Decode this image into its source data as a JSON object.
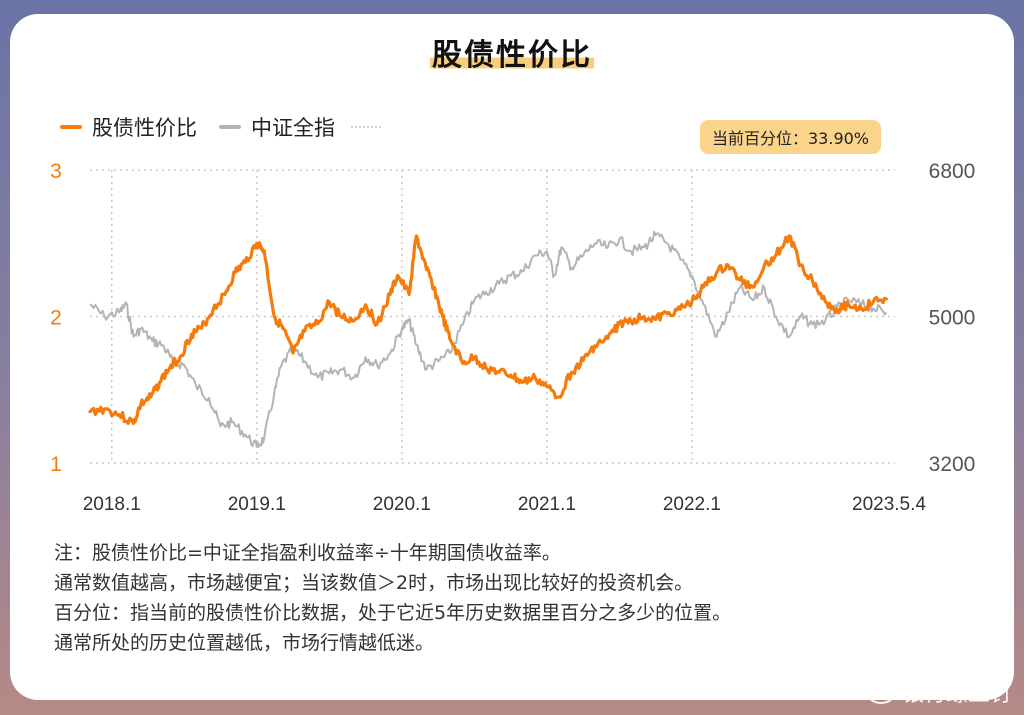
{
  "title": "股债性价比",
  "legend": {
    "series1": "股债性价比",
    "series2": "中证全指"
  },
  "badge": "当前百分位：33.90%",
  "colors": {
    "series1": "#f57c0c",
    "series2": "#b4b4b4",
    "badge_bg": "#f9d48a",
    "title_highlight": "#f7cf7c"
  },
  "notes": [
    "注：股债性价比=中证全指盈利收益率÷十年期国债收益率。",
    "通常数值越高，市场越便宜；当该数值＞2时，市场出现比较好的投资机会。",
    "百分位：指当前的股债性价比数据，处于它近5年历史数据里百分之多少的位置。",
    "通常所处的历史位置越低，市场行情越低迷。"
  ],
  "watermark": "银行螺丝钉",
  "chart_data": {
    "type": "line",
    "x_axis": {
      "range": [
        2018.0,
        2023.35
      ],
      "tick_labels": [
        "2018.1",
        "2019.1",
        "2020.1",
        "2021.1",
        "2022.1",
        "2023.5.4"
      ],
      "tick_values": [
        2018.0,
        2019.0,
        2020.0,
        2021.0,
        2022.0,
        2023.34
      ]
    },
    "y_left": {
      "range": [
        1,
        3
      ],
      "ticks": [
        "1",
        "2",
        "3"
      ]
    },
    "y_right": {
      "range": [
        3200,
        6800
      ],
      "ticks": [
        "3200",
        "5000",
        "6800"
      ]
    },
    "grid": true,
    "legend_position": "top-left",
    "series": [
      {
        "name": "股债性价比",
        "axis": "left",
        "x": [
          2017.85,
          2017.95,
          2018.05,
          2018.15,
          2018.2,
          2018.27,
          2018.33,
          2018.4,
          2018.47,
          2018.55,
          2018.62,
          2018.7,
          2018.78,
          2018.85,
          2018.92,
          2019.0,
          2019.05,
          2019.12,
          2019.18,
          2019.25,
          2019.33,
          2019.42,
          2019.5,
          2019.58,
          2019.67,
          2019.75,
          2019.83,
          2019.92,
          2019.97,
          2020.05,
          2020.1,
          2020.17,
          2020.22,
          2020.28,
          2020.33,
          2020.42,
          2020.5,
          2020.58,
          2020.67,
          2020.75,
          2020.83,
          2020.92,
          2021.0,
          2021.08,
          2021.17,
          2021.25,
          2021.33,
          2021.42,
          2021.5,
          2021.58,
          2021.67,
          2021.75,
          2021.83,
          2021.92,
          2022.0,
          2022.08,
          2022.17,
          2022.25,
          2022.33,
          2022.42,
          2022.5,
          2022.58,
          2022.67,
          2022.75,
          2022.83,
          2022.92,
          2023.0,
          2023.08,
          2023.17,
          2023.25,
          2023.34
        ],
        "y": [
          1.35,
          1.37,
          1.33,
          1.27,
          1.4,
          1.45,
          1.55,
          1.65,
          1.72,
          1.88,
          1.92,
          2.05,
          2.15,
          2.3,
          2.37,
          2.5,
          2.45,
          2.0,
          1.92,
          1.75,
          1.9,
          1.95,
          2.1,
          2.0,
          1.97,
          2.08,
          1.95,
          2.15,
          2.28,
          2.15,
          2.55,
          2.32,
          2.2,
          2.0,
          1.85,
          1.68,
          1.72,
          1.65,
          1.62,
          1.6,
          1.55,
          1.58,
          1.52,
          1.45,
          1.62,
          1.7,
          1.8,
          1.85,
          1.95,
          1.97,
          2.0,
          1.98,
          2.02,
          2.05,
          2.1,
          2.2,
          2.3,
          2.35,
          2.25,
          2.2,
          2.35,
          2.42,
          2.55,
          2.35,
          2.25,
          2.1,
          2.05,
          2.08,
          2.05,
          2.1,
          2.12
        ]
      },
      {
        "name": "中证全指",
        "axis": "right",
        "x": [
          2017.85,
          2017.95,
          2018.05,
          2018.1,
          2018.15,
          2018.2,
          2018.28,
          2018.35,
          2018.42,
          2018.5,
          2018.58,
          2018.67,
          2018.75,
          2018.83,
          2018.92,
          2019.0,
          2019.05,
          2019.12,
          2019.17,
          2019.25,
          2019.33,
          2019.42,
          2019.5,
          2019.58,
          2019.67,
          2019.75,
          2019.83,
          2019.92,
          2020.0,
          2020.05,
          2020.1,
          2020.17,
          2020.25,
          2020.33,
          2020.42,
          2020.5,
          2020.58,
          2020.67,
          2020.75,
          2020.83,
          2020.92,
          2021.0,
          2021.05,
          2021.1,
          2021.17,
          2021.25,
          2021.33,
          2021.42,
          2021.5,
          2021.58,
          2021.67,
          2021.75,
          2021.83,
          2021.92,
          2022.0,
          2022.08,
          2022.17,
          2022.25,
          2022.33,
          2022.42,
          2022.5,
          2022.58,
          2022.67,
          2022.75,
          2022.83,
          2022.92,
          2023.0,
          2023.08,
          2023.17,
          2023.25,
          2023.34
        ],
        "y": [
          5150,
          5000,
          5050,
          5150,
          4750,
          4850,
          4700,
          4650,
          4450,
          4400,
          4150,
          4000,
          3650,
          3700,
          3550,
          3400,
          3500,
          4050,
          4400,
          4600,
          4450,
          4250,
          4300,
          4350,
          4250,
          4500,
          4400,
          4550,
          4850,
          4950,
          4650,
          4350,
          4450,
          4550,
          4900,
          5200,
          5300,
          5400,
          5500,
          5550,
          5750,
          5800,
          5500,
          5850,
          5600,
          5750,
          5900,
          5850,
          5950,
          5800,
          5850,
          6000,
          5900,
          5700,
          5500,
          5150,
          4750,
          5050,
          5350,
          5200,
          5350,
          5000,
          4750,
          5000,
          4900,
          4950,
          5100,
          5200,
          5150,
          5100,
          5050
        ]
      }
    ]
  }
}
